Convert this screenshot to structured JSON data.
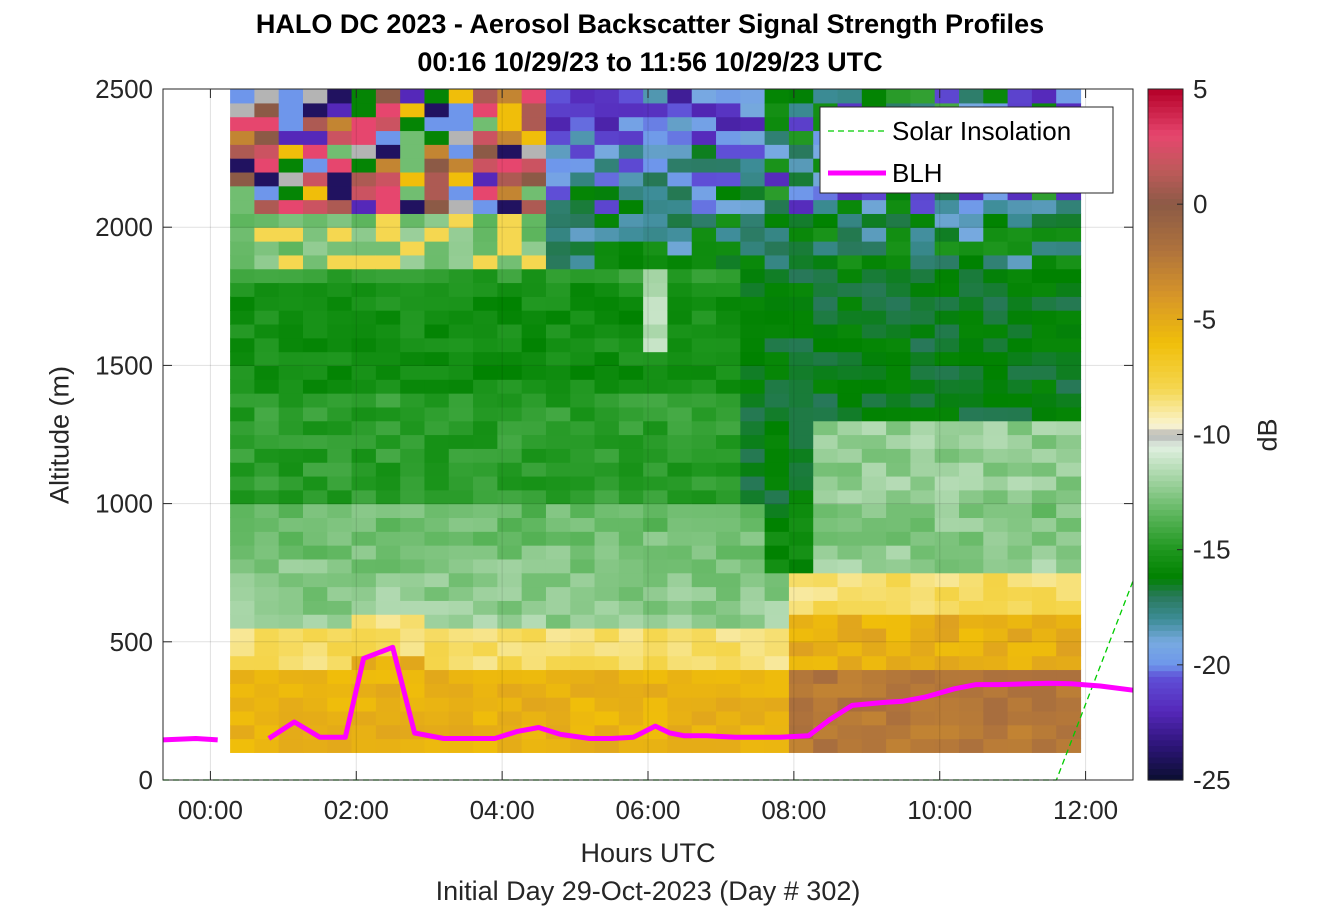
{
  "chart_data": {
    "type": "heatmap",
    "title": "HALO DC 2023 - Aerosol Backscatter Signal Strength Profiles",
    "subtitle": "00:16 10/29/23 to 11:56 10/29/23  UTC",
    "xlabel": "Hours UTC",
    "ylabel": "Altitude (m)",
    "footnote": "Initial Day 29-Oct-2023 (Day # 302)",
    "xlim": [
      -0.65,
      12.65
    ],
    "ylim": [
      0,
      2500
    ],
    "x_ticks": [
      0,
      2,
      4,
      6,
      8,
      10,
      12
    ],
    "x_tick_labels": [
      "00:00",
      "02:00",
      "04:00",
      "06:00",
      "08:00",
      "10:00",
      "12:00"
    ],
    "y_ticks": [
      0,
      500,
      1000,
      1500,
      2000,
      2500
    ],
    "y_tick_labels": [
      "0",
      "500",
      "1000",
      "1500",
      "2000",
      "2500"
    ],
    "grid": true,
    "colorbar": {
      "label": "dB",
      "range": [
        -25,
        5
      ],
      "ticks": [
        5,
        0,
        -5,
        -10,
        -15,
        -20,
        -25
      ],
      "tick_labels": [
        "5",
        "0",
        "-5",
        "-10",
        "-15",
        "-20",
        "-25"
      ]
    },
    "heatmap": {
      "x_start": 0.27,
      "x_end": 11.93,
      "columns": 35,
      "y_start": 100,
      "y_end": 2500,
      "rows": 48
    },
    "series": [
      {
        "name": "Solar Insolation",
        "style": "dashed",
        "color": "#00cc00",
        "x": [
          -0.65,
          11.6,
          12.65
        ],
        "y": [
          0,
          0,
          720
        ]
      },
      {
        "name": "BLH",
        "style": "solid",
        "color": "#ff00ff",
        "x": [
          -0.65,
          -0.2,
          0.1,
          0.5,
          0.8,
          1.15,
          1.5,
          1.85,
          2.1,
          2.5,
          2.8,
          3.2,
          3.5,
          3.9,
          4.2,
          4.5,
          4.8,
          5.2,
          5.5,
          5.8,
          6.1,
          6.3,
          6.5,
          6.8,
          7.2,
          7.5,
          7.8,
          8.2,
          8.5,
          8.8,
          9.2,
          9.5,
          9.8,
          10.2,
          10.5,
          10.8,
          11.2,
          11.5,
          11.8,
          12.2,
          12.65
        ],
        "y": [
          145,
          150,
          145,
          null,
          150,
          210,
          155,
          155,
          440,
          480,
          170,
          150,
          150,
          150,
          175,
          190,
          165,
          150,
          150,
          155,
          195,
          170,
          160,
          160,
          155,
          155,
          155,
          160,
          220,
          270,
          280,
          285,
          300,
          330,
          345,
          345,
          348,
          350,
          348,
          340,
          325
        ]
      }
    ],
    "legend": {
      "placement": "top-right",
      "entries": [
        "Solar Insolation",
        "BLH"
      ]
    }
  }
}
